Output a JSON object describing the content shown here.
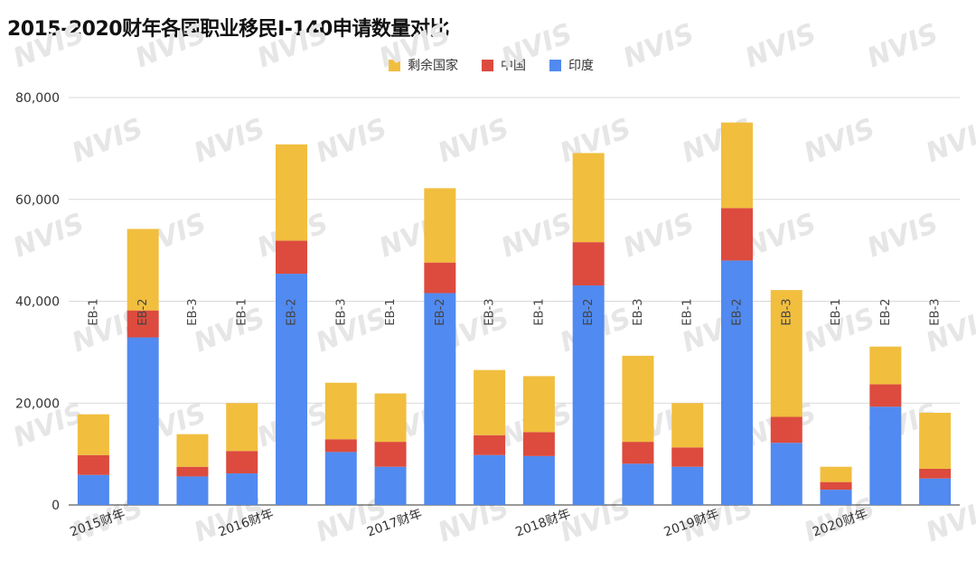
{
  "title": "2015-2020财年各国职业移民I-140申请数量对比",
  "watermark": "NVIS",
  "colors": {
    "rest": "#f1be3e",
    "china": "#dc4b3e",
    "india": "#518af0",
    "grid": "#d9d9d9",
    "axis": "#333333"
  },
  "chart_data": {
    "type": "bar",
    "stacked": true,
    "title": "2015-2020财年各国职业移民I-140申请数量对比",
    "legend": {
      "position": "top",
      "entries": [
        "剩余国家",
        "中国",
        "印度"
      ]
    },
    "bar_labels": [
      "EB-1",
      "EB-2",
      "EB-3",
      "EB-1",
      "EB-2",
      "EB-3",
      "EB-1",
      "EB-2",
      "EB-3",
      "EB-1",
      "EB-2",
      "EB-3",
      "EB-1",
      "EB-2",
      "EB-3",
      "EB-1",
      "EB-2",
      "EB-3"
    ],
    "x_tick_labels": [
      "2015财年",
      "2016财年",
      "2017财年",
      "2018财年",
      "2019财年",
      "2020财年"
    ],
    "y_tick_labels": [
      "0",
      "20,000",
      "40,000",
      "60,000",
      "80,000"
    ],
    "ylim": [
      0,
      80000
    ],
    "grid": true,
    "series": [
      {
        "name": "印度",
        "values": [
          5900,
          32900,
          5600,
          6200,
          45400,
          10400,
          7500,
          41600,
          9800,
          9600,
          43100,
          8100,
          7500,
          48000,
          12200,
          3000,
          19300,
          5200
        ]
      },
      {
        "name": "中国",
        "values": [
          3900,
          5300,
          1900,
          4400,
          6500,
          2500,
          4900,
          6000,
          3900,
          4700,
          8500,
          4300,
          3800,
          10300,
          5100,
          1500,
          4400,
          1900
        ]
      },
      {
        "name": "剩余国家",
        "values": [
          8000,
          16000,
          6400,
          9400,
          18900,
          11100,
          9500,
          14600,
          12800,
          11000,
          17500,
          16900,
          8700,
          16800,
          24900,
          3000,
          7400,
          11000
        ]
      }
    ]
  }
}
